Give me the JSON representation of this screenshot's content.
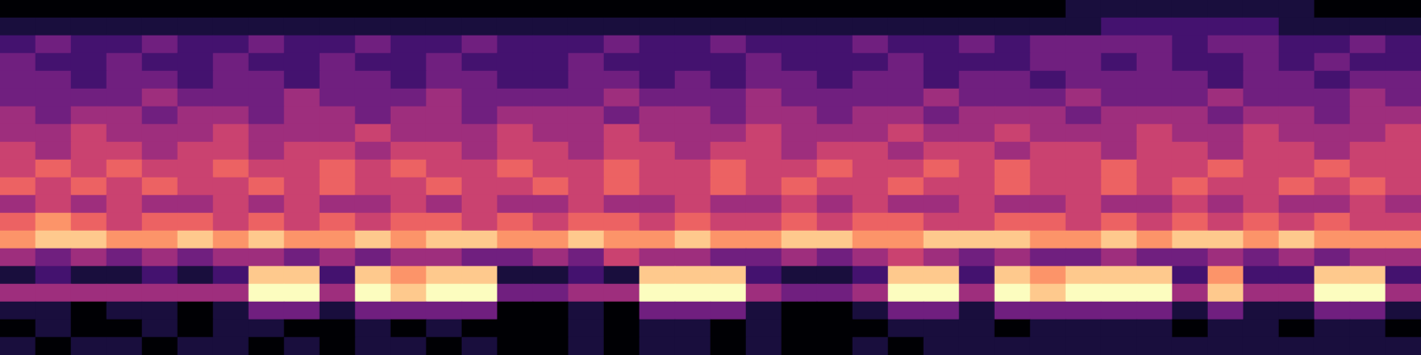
{
  "chart_data": {
    "type": "heatmap",
    "tick_labels": false,
    "grid": false,
    "color_range": [
      0,
      9
    ],
    "cells": [
      [
        0,
        0,
        0,
        0,
        0,
        0,
        0,
        0,
        0,
        0,
        0,
        0,
        0,
        0,
        0,
        0,
        0,
        0,
        0,
        0,
        0,
        0,
        0,
        0,
        0,
        0,
        0,
        0,
        0,
        0,
        1,
        1,
        1,
        1,
        1,
        1,
        1,
        0,
        0,
        0
      ],
      [
        1,
        1,
        1,
        1,
        1,
        1,
        1,
        1,
        1,
        1,
        1,
        1,
        1,
        1,
        1,
        1,
        1,
        1,
        1,
        1,
        1,
        1,
        1,
        1,
        1,
        1,
        1,
        1,
        1,
        1,
        1,
        2,
        2,
        2,
        2,
        2,
        1,
        1,
        1,
        1
      ],
      [
        2,
        3,
        2,
        2,
        3,
        2,
        2,
        3,
        2,
        2,
        3,
        2,
        2,
        3,
        2,
        2,
        2,
        3,
        2,
        2,
        3,
        2,
        2,
        2,
        3,
        2,
        2,
        3,
        2,
        3,
        3,
        3,
        3,
        2,
        3,
        3,
        2,
        2,
        3,
        2
      ],
      [
        3,
        2,
        2,
        3,
        2,
        2,
        3,
        2,
        2,
        3,
        2,
        2,
        3,
        2,
        2,
        2,
        3,
        2,
        2,
        2,
        2,
        3,
        2,
        2,
        2,
        3,
        2,
        2,
        2,
        3,
        3,
        2,
        3,
        2,
        2,
        3,
        2,
        3,
        2,
        2
      ],
      [
        3,
        3,
        2,
        3,
        3,
        2,
        3,
        3,
        2,
        3,
        3,
        2,
        3,
        3,
        2,
        2,
        3,
        3,
        2,
        3,
        2,
        3,
        3,
        2,
        3,
        3,
        2,
        3,
        3,
        2,
        3,
        3,
        3,
        3,
        2,
        3,
        3,
        2,
        3,
        3
      ],
      [
        3,
        3,
        3,
        3,
        4,
        3,
        3,
        3,
        4,
        3,
        3,
        3,
        4,
        3,
        3,
        3,
        3,
        4,
        3,
        3,
        3,
        4,
        3,
        3,
        3,
        3,
        4,
        3,
        3,
        3,
        4,
        3,
        3,
        3,
        4,
        3,
        3,
        3,
        4,
        3
      ],
      [
        4,
        3,
        4,
        4,
        3,
        4,
        4,
        3,
        4,
        4,
        3,
        4,
        4,
        3,
        4,
        4,
        4,
        3,
        4,
        4,
        3,
        4,
        4,
        3,
        4,
        4,
        3,
        4,
        4,
        4,
        3,
        4,
        4,
        4,
        3,
        4,
        4,
        3,
        4,
        4
      ],
      [
        4,
        4,
        5,
        4,
        4,
        4,
        5,
        4,
        4,
        4,
        5,
        4,
        4,
        4,
        5,
        4,
        4,
        5,
        4,
        4,
        4,
        5,
        4,
        4,
        4,
        5,
        4,
        4,
        5,
        4,
        4,
        4,
        5,
        4,
        4,
        5,
        4,
        4,
        4,
        5
      ],
      [
        5,
        4,
        5,
        5,
        4,
        5,
        5,
        4,
        5,
        5,
        4,
        5,
        5,
        4,
        5,
        5,
        4,
        5,
        5,
        4,
        5,
        5,
        4,
        5,
        5,
        4,
        5,
        5,
        4,
        5,
        5,
        4,
        5,
        5,
        4,
        5,
        5,
        4,
        5,
        5
      ],
      [
        5,
        6,
        5,
        6,
        5,
        5,
        6,
        5,
        5,
        6,
        5,
        6,
        5,
        5,
        6,
        5,
        5,
        6,
        5,
        5,
        6,
        5,
        5,
        6,
        5,
        5,
        6,
        5,
        6,
        5,
        5,
        6,
        5,
        5,
        6,
        5,
        5,
        6,
        5,
        5
      ],
      [
        6,
        5,
        6,
        5,
        6,
        5,
        5,
        6,
        5,
        6,
        5,
        5,
        6,
        5,
        5,
        6,
        5,
        6,
        5,
        5,
        6,
        5,
        6,
        5,
        5,
        6,
        5,
        5,
        6,
        5,
        5,
        6,
        5,
        6,
        5,
        5,
        6,
        5,
        6,
        5
      ],
      [
        4,
        5,
        4,
        5,
        4,
        4,
        5,
        4,
        5,
        4,
        4,
        5,
        4,
        5,
        4,
        4,
        5,
        4,
        4,
        5,
        4,
        4,
        5,
        4,
        5,
        4,
        4,
        5,
        4,
        4,
        5,
        4,
        4,
        5,
        4,
        5,
        4,
        4,
        5,
        4
      ],
      [
        6,
        7,
        6,
        5,
        6,
        6,
        5,
        6,
        5,
        6,
        5,
        6,
        6,
        5,
        6,
        5,
        6,
        6,
        5,
        6,
        5,
        5,
        6,
        5,
        6,
        6,
        5,
        5,
        6,
        6,
        5,
        6,
        5,
        6,
        5,
        6,
        5,
        6,
        5,
        5
      ],
      [
        7,
        8,
        8,
        7,
        7,
        8,
        7,
        8,
        7,
        7,
        8,
        7,
        8,
        8,
        7,
        7,
        8,
        7,
        7,
        8,
        7,
        7,
        8,
        8,
        7,
        7,
        8,
        8,
        8,
        7,
        7,
        8,
        7,
        8,
        8,
        7,
        8,
        7,
        7,
        7
      ],
      [
        4,
        3,
        4,
        3,
        4,
        3,
        4,
        4,
        3,
        4,
        3,
        4,
        4,
        3,
        3,
        4,
        3,
        5,
        4,
        4,
        3,
        3,
        4,
        3,
        4,
        5,
        4,
        3,
        4,
        3,
        3,
        4,
        3,
        3,
        4,
        3,
        4,
        3,
        4,
        4
      ],
      [
        1,
        2,
        1,
        1,
        2,
        1,
        2,
        8,
        8,
        2,
        8,
        7,
        8,
        8,
        1,
        1,
        2,
        1,
        8,
        8,
        8,
        2,
        1,
        1,
        2,
        8,
        8,
        2,
        8,
        7,
        8,
        8,
        8,
        2,
        7,
        2,
        2,
        8,
        8,
        2
      ],
      [
        4,
        4,
        4,
        4,
        4,
        4,
        4,
        9,
        9,
        4,
        9,
        8,
        9,
        9,
        3,
        3,
        4,
        4,
        9,
        9,
        9,
        4,
        3,
        3,
        4,
        9,
        9,
        4,
        9,
        8,
        9,
        9,
        9,
        4,
        8,
        4,
        4,
        9,
        9,
        4
      ],
      [
        1,
        1,
        0,
        1,
        1,
        0,
        1,
        3,
        3,
        1,
        3,
        3,
        3,
        3,
        0,
        0,
        1,
        0,
        3,
        3,
        3,
        1,
        0,
        0,
        1,
        3,
        3,
        1,
        3,
        3,
        3,
        3,
        3,
        1,
        3,
        1,
        1,
        3,
        3,
        1
      ],
      [
        0,
        1,
        0,
        0,
        1,
        0,
        1,
        1,
        0,
        0,
        1,
        0,
        1,
        0,
        0,
        0,
        1,
        0,
        1,
        1,
        0,
        1,
        0,
        0,
        0,
        1,
        1,
        1,
        0,
        1,
        1,
        1,
        1,
        0,
        1,
        1,
        0,
        1,
        1,
        0
      ],
      [
        1,
        0,
        1,
        1,
        0,
        1,
        1,
        0,
        1,
        0,
        1,
        1,
        0,
        1,
        0,
        0,
        1,
        0,
        1,
        1,
        0,
        1,
        0,
        0,
        1,
        0,
        1,
        1,
        1,
        1,
        1,
        1,
        1,
        1,
        1,
        1,
        1,
        1,
        1,
        1
      ]
    ]
  }
}
